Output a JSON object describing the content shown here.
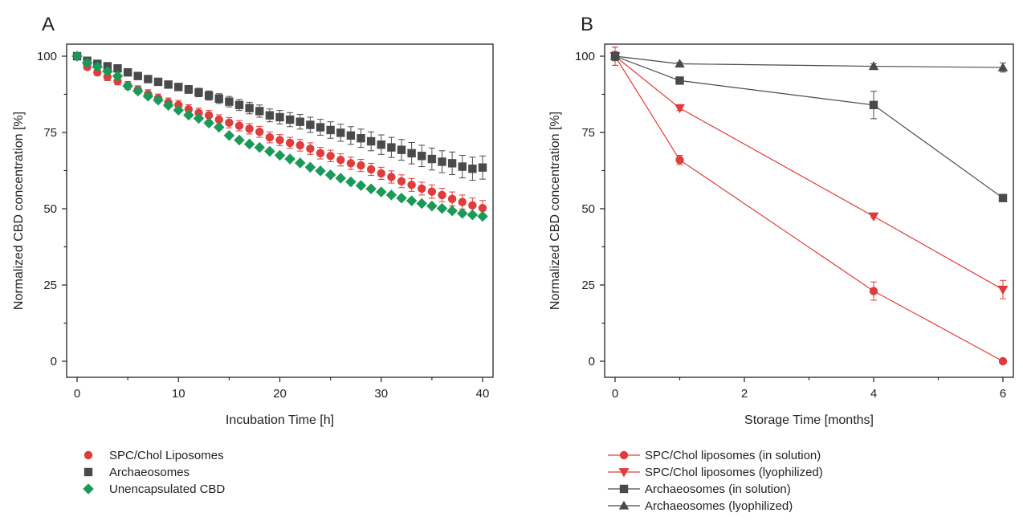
{
  "chart_data": [
    {
      "panel": "A",
      "type": "scatter",
      "xlabel": "Incubation Time [h]",
      "ylabel": "Normalized CBD concentration [%]",
      "xlim": [
        0,
        40
      ],
      "ylim": [
        0,
        100
      ],
      "xticks": [
        0,
        10,
        20,
        30,
        40
      ],
      "yticks": [
        0,
        25,
        50,
        75,
        100
      ],
      "grid": false,
      "legend_position": "bottom-left, below plot",
      "series": [
        {
          "name": "SPC/Chol Liposomes",
          "color": "#e03c3c",
          "marker": "circle",
          "x": [
            0,
            1,
            2,
            3,
            4,
            5,
            6,
            7,
            8,
            9,
            10,
            11,
            12,
            13,
            14,
            15,
            16,
            17,
            18,
            19,
            20,
            21,
            22,
            23,
            24,
            25,
            26,
            27,
            28,
            29,
            30,
            31,
            32,
            33,
            34,
            35,
            36,
            37,
            38,
            39,
            40
          ],
          "y": [
            100,
            96.5,
            94.7,
            93.2,
            91.8,
            90.4,
            89.0,
            87.6,
            86.2,
            84.8,
            84.0,
            82.6,
            81.4,
            80.6,
            79.2,
            78.2,
            77.2,
            76.2,
            75.2,
            73.4,
            72.5,
            71.6,
            70.8,
            69.7,
            68.2,
            67.3,
            66.0,
            64.9,
            64.2,
            62.9,
            61.6,
            60.4,
            59.0,
            57.8,
            56.6,
            55.6,
            54.5,
            53.2,
            52.2,
            51.1,
            50.2
          ],
          "error": [
            0,
            1,
            1,
            1.2,
            1.2,
            1.3,
            1.3,
            1.4,
            1.4,
            1.5,
            1.5,
            1.5,
            1.6,
            1.6,
            1.6,
            1.7,
            1.7,
            1.7,
            1.8,
            1.8,
            1.8,
            1.8,
            1.9,
            1.9,
            1.9,
            1.9,
            2,
            2,
            2,
            2,
            2,
            2,
            2.1,
            2.1,
            2.1,
            2.2,
            2.2,
            2.3,
            2.3,
            2.4,
            2.5
          ]
        },
        {
          "name": "Archaeosomes",
          "color": "#4a4a4a",
          "marker": "square",
          "x": [
            0,
            1,
            2,
            3,
            4,
            5,
            6,
            7,
            8,
            9,
            10,
            11,
            12,
            13,
            14,
            15,
            16,
            17,
            18,
            19,
            20,
            21,
            22,
            23,
            24,
            25,
            26,
            27,
            28,
            29,
            30,
            31,
            32,
            33,
            34,
            35,
            36,
            37,
            38,
            39,
            40
          ],
          "y": [
            100,
            98.5,
            97.5,
            96.7,
            96.0,
            94.7,
            93.5,
            92.5,
            91.6,
            90.7,
            89.9,
            89.1,
            88.1,
            87.1,
            86.1,
            85.1,
            84.0,
            83.0,
            82.0,
            80.6,
            80.0,
            79.2,
            78.5,
            77.5,
            76.7,
            75.8,
            74.9,
            74.0,
            73.1,
            72.1,
            71.0,
            70.1,
            69.3,
            68.2,
            67.3,
            66.3,
            65.4,
            64.9,
            63.8,
            63.1,
            63.5
          ],
          "error": [
            0,
            0.3,
            0.4,
            0.5,
            0.6,
            0.7,
            0.8,
            0.9,
            1,
            1.1,
            1.2,
            1.3,
            1.4,
            1.5,
            1.6,
            1.7,
            1.8,
            1.9,
            2,
            2.1,
            2.2,
            2.3,
            2.4,
            2.5,
            2.6,
            2.7,
            2.8,
            2.9,
            3,
            3.1,
            3.2,
            3.3,
            3.4,
            3.5,
            3.5,
            3.6,
            3.6,
            3.7,
            3.7,
            3.8,
            3.8
          ]
        },
        {
          "name": "Unencapsulated CBD",
          "color": "#1a9a58",
          "marker": "diamond",
          "x": [
            0,
            1,
            2,
            3,
            4,
            5,
            6,
            7,
            8,
            9,
            10,
            11,
            12,
            13,
            14,
            15,
            16,
            17,
            18,
            19,
            20,
            21,
            22,
            23,
            24,
            25,
            26,
            27,
            28,
            29,
            30,
            31,
            32,
            33,
            34,
            35,
            36,
            37,
            38,
            39,
            40
          ],
          "y": [
            100,
            97.8,
            96.5,
            95.0,
            93.5,
            90.2,
            88.6,
            86.9,
            85.6,
            83.9,
            82.3,
            80.7,
            79.6,
            78.1,
            76.7,
            74.0,
            72.5,
            71.2,
            70.1,
            68.8,
            67.5,
            66.3,
            65.0,
            63.6,
            62.4,
            61.1,
            60.0,
            58.8,
            57.6,
            56.5,
            55.5,
            54.5,
            53.5,
            52.6,
            51.7,
            50.9,
            50.1,
            49.3,
            48.5,
            48.0,
            47.5
          ],
          "error": [
            0,
            0.3,
            0.3,
            0.3,
            0.3,
            0.3,
            0.3,
            0.3,
            0.3,
            0.3,
            0.3,
            0.3,
            0.3,
            0.3,
            0.3,
            0.3,
            0.3,
            0.3,
            0.3,
            0.3,
            0.3,
            0.3,
            0.3,
            0.3,
            0.3,
            0.3,
            0.3,
            0.3,
            0.3,
            0.3,
            0.3,
            0.3,
            0.3,
            0.3,
            0.3,
            0.3,
            0.3,
            0.3,
            0.3,
            0.3,
            0.3
          ]
        }
      ]
    },
    {
      "panel": "B",
      "type": "line",
      "xlabel": "Storage Time [months]",
      "ylabel": "Normalized CBD concentration [%]",
      "xlim": [
        0,
        6
      ],
      "ylim": [
        0,
        100
      ],
      "xticks": [
        0,
        2,
        4,
        6
      ],
      "yticks": [
        0,
        25,
        50,
        75,
        100
      ],
      "grid": false,
      "legend_position": "bottom-left, below plot",
      "series": [
        {
          "name": "SPC/Chol liposomes (in solution)",
          "color": "#e03c3c",
          "marker": "circle",
          "x": [
            0,
            1,
            4,
            6
          ],
          "y": [
            100,
            66,
            23,
            0
          ],
          "error": [
            3,
            1.5,
            3,
            0.3
          ]
        },
        {
          "name": "SPC/Chol liposomes (lyophilized)",
          "color": "#e03c3c",
          "marker": "triangle-down",
          "x": [
            0,
            1,
            4,
            6
          ],
          "y": [
            100,
            83,
            47.5,
            23.5
          ],
          "error": [
            3,
            0.8,
            0.5,
            3
          ]
        },
        {
          "name": "Archaeosomes (in solution)",
          "color": "#4a4a4a",
          "marker": "square",
          "x": [
            0,
            1,
            4,
            6
          ],
          "y": [
            100,
            92,
            84,
            53.5
          ],
          "error": [
            1.5,
            1,
            4.5,
            0.5
          ]
        },
        {
          "name": "Archaeosomes (lyophilized)",
          "color": "#4a4a4a",
          "marker": "triangle-up",
          "x": [
            0,
            1,
            4,
            6
          ],
          "y": [
            100,
            97.5,
            96.7,
            96.3
          ],
          "error": [
            1,
            0.5,
            0.8,
            1.5
          ]
        }
      ]
    }
  ]
}
